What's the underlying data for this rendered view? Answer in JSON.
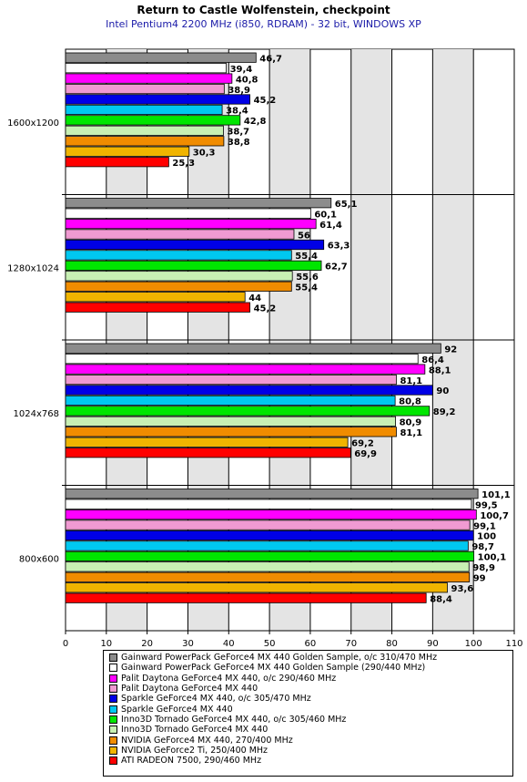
{
  "chart_data": {
    "type": "bar",
    "orientation": "horizontal",
    "title": "Return to Castle Wolfenstein, checkpoint",
    "subtitle": "Intel Pentium4 2200 MHz (i850, RDRAM) - 32 bit, WINDOWS XP",
    "categories": [
      "1600x1200",
      "1280x1024",
      "1024x768",
      "800x600"
    ],
    "xlim": [
      0,
      110
    ],
    "xticks": [
      0,
      10,
      20,
      30,
      40,
      50,
      60,
      70,
      80,
      90,
      100,
      110
    ],
    "grid": true,
    "legend_position": "bottom",
    "series": [
      {
        "name": "Gainward PowerPack GeForce4 MX 440 Golden Sample, o/c 310/470 MHz",
        "color": "#8c8c8c",
        "values": [
          46.7,
          65.1,
          92,
          101.1
        ],
        "labels": [
          "46,7",
          "65,1",
          "92",
          "101,1"
        ]
      },
      {
        "name": "Gainward PowerPack GeForce4 MX 440 Golden Sample (290/440 MHz)",
        "color": "#ffffff",
        "values": [
          39.4,
          60.1,
          86.4,
          99.5
        ],
        "labels": [
          "39,4",
          "60,1",
          "86,4",
          "99,5"
        ]
      },
      {
        "name": "Palit Daytona GeForce4 MX 440, o/c 290/460 MHz",
        "color": "#ff00ff",
        "values": [
          40.8,
          61.4,
          88.1,
          100.7
        ],
        "labels": [
          "40,8",
          "61,4",
          "88,1",
          "100,7"
        ]
      },
      {
        "name": "Palit Daytona GeForce4 MX 440",
        "color": "#f09ad2",
        "values": [
          38.9,
          56,
          81.1,
          99.1
        ],
        "labels": [
          "38,9",
          "56",
          "81,1",
          "99,1"
        ]
      },
      {
        "name": "Sparkle GeForce4 MX 440, o/c 305/470 MHz",
        "color": "#0000e6",
        "values": [
          45.2,
          63.3,
          90,
          100
        ],
        "labels": [
          "45,2",
          "63,3",
          "90",
          "100"
        ]
      },
      {
        "name": "Sparkle GeForce4 MX 440",
        "color": "#00c8f0",
        "values": [
          38.4,
          55.4,
          80.8,
          98.7
        ],
        "labels": [
          "38,4",
          "55,4",
          "80,8",
          "98,7"
        ]
      },
      {
        "name": "Inno3D Tornado GeForce4 MX 440, o/c 305/460 MHz",
        "color": "#00e600",
        "values": [
          42.8,
          62.7,
          89.2,
          100.1
        ],
        "labels": [
          "42,8",
          "62,7",
          "89,2",
          "100,1"
        ]
      },
      {
        "name": "Inno3D Tornado GeForce4 MX 440",
        "color": "#c8f0b4",
        "values": [
          38.7,
          55.6,
          80.9,
          98.9
        ],
        "labels": [
          "38,7",
          "55,6",
          "80,9",
          "98,9"
        ]
      },
      {
        "name": "NVIDIA GeForce4 MX 440, 270/400 MHz",
        "color": "#f08c00",
        "values": [
          38.8,
          55.4,
          81.1,
          99
        ],
        "labels": [
          "38,8",
          "55,4",
          "81,1",
          "99"
        ]
      },
      {
        "name": "NVIDIA GeForce2 Ti, 250/400 MHz",
        "color": "#f0b400",
        "values": [
          30.3,
          44,
          69.2,
          93.6
        ],
        "labels": [
          "30,3",
          "44",
          "69,2",
          "93,6"
        ]
      },
      {
        "name": "ATI RADEON 7500, 290/460 MHz",
        "color": "#ff0000",
        "values": [
          25.3,
          45.2,
          69.9,
          88.4
        ],
        "labels": [
          "25,3",
          "45,2",
          "69,9",
          "88,4"
        ]
      }
    ]
  }
}
